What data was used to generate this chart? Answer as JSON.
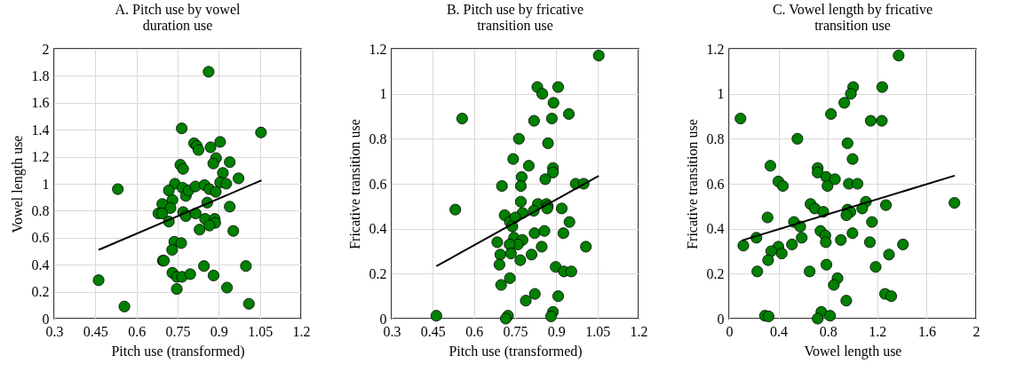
{
  "chart_data": [
    {
      "type": "scatter",
      "title": "A. Pitch use by vowel duration use",
      "xlabel": "Pitch use (transformed)",
      "ylabel": "Vowel length use",
      "xlim": [
        0.3,
        1.2
      ],
      "ylim": [
        0,
        2
      ],
      "xticks": [
        0.3,
        0.45,
        0.6,
        0.75,
        0.9,
        1.05,
        1.2
      ],
      "yticks": [
        0,
        0.2,
        0.4,
        0.6,
        0.8,
        1,
        1.2,
        1.4,
        1.6,
        1.8,
        2
      ],
      "grid": true,
      "series": [
        {
          "type": "scatter",
          "marker": "circle",
          "color": "#008000",
          "x": [
            0.863,
            0.765,
            1.054,
            0.81,
            0.82,
            0.826,
            0.87,
            0.905,
            0.89,
            0.88,
            0.76,
            0.77,
            0.94,
            0.915,
            0.972,
            0.905,
            0.927,
            0.74,
            0.532,
            0.718,
            0.768,
            0.78,
            0.79,
            0.815,
            0.848,
            0.866,
            0.889,
            0.858,
            0.731,
            0.694,
            0.724,
            0.68,
            0.694,
            0.77,
            0.78,
            0.718,
            0.816,
            0.85,
            0.885,
            0.887,
            0.866,
            0.94,
            0.83,
            0.953,
            0.738,
            0.73,
            0.763,
            0.696,
            0.7,
            0.846,
            0.999,
            0.731,
            0.747,
            0.766,
            0.796,
            0.881,
            0.462,
            0.747,
            0.93,
            0.556,
            1.01
          ],
          "values": [
            1.83,
            1.41,
            1.38,
            1.3,
            1.28,
            1.25,
            1.27,
            1.31,
            1.19,
            1.15,
            1.14,
            1.11,
            1.16,
            1.08,
            1.04,
            1.01,
            1.0,
            1.0,
            0.96,
            0.95,
            0.97,
            0.91,
            0.95,
            0.98,
            0.99,
            0.96,
            0.94,
            0.86,
            0.88,
            0.85,
            0.82,
            0.78,
            0.78,
            0.79,
            0.76,
            0.72,
            0.78,
            0.74,
            0.74,
            0.71,
            0.69,
            0.83,
            0.66,
            0.65,
            0.57,
            0.51,
            0.56,
            0.43,
            0.43,
            0.39,
            0.39,
            0.34,
            0.31,
            0.31,
            0.33,
            0.32,
            0.285,
            0.22,
            0.23,
            0.09,
            0.11
          ]
        },
        {
          "type": "line",
          "color": "#000000",
          "x": [
            0.462,
            1.056
          ],
          "values": [
            0.51,
            1.025
          ]
        }
      ]
    },
    {
      "type": "scatter",
      "title": "B. Pitch use by fricative transition use",
      "xlabel": "Pitch use (transformed)",
      "ylabel": "Fricative transition use",
      "xlim": [
        0.3,
        1.2
      ],
      "ylim": [
        0,
        1.2
      ],
      "xticks": [
        0.3,
        0.45,
        0.6,
        0.75,
        0.9,
        1.05,
        1.2
      ],
      "yticks": [
        0,
        0.2,
        0.4,
        0.6,
        0.8,
        1,
        1.2
      ],
      "grid": true,
      "series": [
        {
          "type": "scatter",
          "marker": "circle",
          "color": "#008000",
          "x": [
            1.055,
            0.831,
            0.907,
            0.849,
            0.89,
            0.557,
            0.946,
            0.819,
            0.884,
            0.764,
            0.87,
            0.743,
            0.8,
            0.888,
            0.888,
            0.774,
            0.771,
            0.702,
            0.86,
            0.971,
            1.0,
            0.771,
            0.833,
            0.864,
            0.869,
            0.867,
            0.532,
            0.92,
            0.818,
            0.777,
            0.712,
            0.731,
            0.75,
            0.74,
            0.948,
            0.821,
            0.857,
            0.926,
            0.746,
            0.777,
            0.76,
            0.685,
            0.73,
            1.008,
            0.847,
            0.696,
            0.735,
            0.81,
            0.693,
            0.769,
            0.898,
            0.928,
            0.955,
            0.731,
            0.699,
            0.822,
            0.907,
            0.789,
            0.463,
            0.724,
            0.716,
            0.888,
            0.881
          ],
          "values": [
            1.17,
            1.03,
            1.03,
            1.0,
            0.96,
            0.89,
            0.91,
            0.88,
            0.89,
            0.8,
            0.78,
            0.71,
            0.68,
            0.67,
            0.65,
            0.63,
            0.59,
            0.59,
            0.62,
            0.6,
            0.6,
            0.52,
            0.51,
            0.51,
            0.5,
            0.49,
            0.485,
            0.49,
            0.48,
            0.47,
            0.46,
            0.43,
            0.45,
            0.41,
            0.43,
            0.38,
            0.39,
            0.38,
            0.36,
            0.35,
            0.33,
            0.34,
            0.33,
            0.32,
            0.32,
            0.285,
            0.29,
            0.285,
            0.24,
            0.26,
            0.23,
            0.21,
            0.21,
            0.18,
            0.15,
            0.11,
            0.1,
            0.08,
            0.013,
            0.013,
            0.0,
            0.03,
            0.01
          ]
        },
        {
          "type": "line",
          "color": "#000000",
          "x": [
            0.463,
            1.055
          ],
          "values": [
            0.233,
            0.635
          ]
        }
      ]
    },
    {
      "type": "scatter",
      "title": "C. Vowel length by fricative transition use",
      "xlabel": "Vowel length use",
      "ylabel": "Fricative transition use",
      "xlim": [
        0,
        2
      ],
      "ylim": [
        0,
        1.2
      ],
      "xticks": [
        0,
        0.4,
        0.8,
        1.2,
        1.6,
        2
      ],
      "yticks": [
        0,
        0.2,
        0.4,
        0.6,
        0.8,
        1,
        1.2
      ],
      "grid": true,
      "series": [
        {
          "type": "scatter",
          "marker": "circle",
          "color": "#008000",
          "x": [
            1.373,
            1.005,
            1.24,
            0.986,
            0.933,
            0.092,
            0.825,
            1.147,
            1.237,
            0.553,
            0.959,
            1.0,
            0.334,
            0.717,
            0.717,
            0.786,
            0.797,
            0.857,
            0.399,
            0.435,
            0.97,
            1.04,
            1.825,
            0.659,
            1.108,
            1.27,
            0.694,
            0.763,
            1.078,
            0.959,
            0.982,
            0.95,
            0.311,
            0.525,
            0.576,
            1.157,
            0.74,
            0.779,
            0.999,
            0.221,
            0.588,
            0.905,
            0.783,
            1.14,
            0.509,
            0.115,
            1.408,
            0.399,
            0.341,
            0.426,
            1.295,
            0.316,
            0.788,
            1.187,
            0.228,
            0.652,
            0.878,
            0.848,
            1.263,
            1.313,
            0.949,
            0.29,
            0.32,
            0.747,
            0.717,
            0.818
          ],
          "values": [
            1.17,
            1.03,
            1.03,
            1.0,
            0.96,
            0.89,
            0.91,
            0.88,
            0.88,
            0.8,
            0.78,
            0.71,
            0.68,
            0.67,
            0.65,
            0.63,
            0.59,
            0.62,
            0.61,
            0.59,
            0.6,
            0.6,
            0.515,
            0.51,
            0.52,
            0.505,
            0.49,
            0.475,
            0.49,
            0.485,
            0.475,
            0.46,
            0.45,
            0.43,
            0.41,
            0.43,
            0.39,
            0.37,
            0.38,
            0.36,
            0.36,
            0.35,
            0.34,
            0.34,
            0.33,
            0.325,
            0.33,
            0.32,
            0.3,
            0.29,
            0.285,
            0.26,
            0.24,
            0.23,
            0.21,
            0.21,
            0.18,
            0.15,
            0.11,
            0.1,
            0.08,
            0.013,
            0.01,
            0.03,
            0.0,
            0.013
          ]
        },
        {
          "type": "line",
          "color": "#000000",
          "x": [
            0.104,
            1.827
          ],
          "values": [
            0.348,
            0.636
          ]
        }
      ]
    }
  ]
}
